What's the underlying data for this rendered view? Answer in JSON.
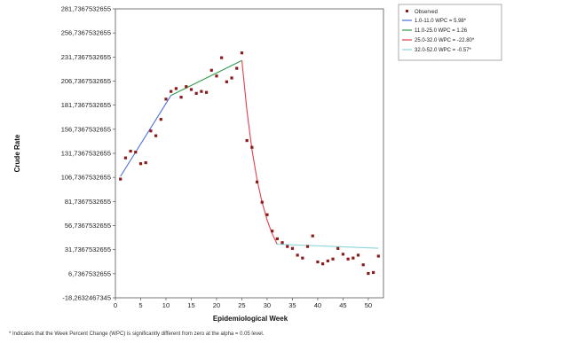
{
  "chart_data": {
    "type": "scatter",
    "xlabel": "Epidemiological Week",
    "ylabel": "Crude Rate",
    "xlim": [
      0,
      53
    ],
    "ylim": [
      -18.2632467345,
      281.7367532655
    ],
    "x_ticks": [
      0,
      5,
      10,
      15,
      20,
      25,
      30,
      35,
      40,
      45,
      50
    ],
    "y_ticks": [
      {
        "value": -18.2632467345,
        "label": "-18,2632467345"
      },
      {
        "value": 6.7367532655,
        "label": "6,7367532655"
      },
      {
        "value": 31.7367532655,
        "label": "31,7367532655"
      },
      {
        "value": 56.7367532655,
        "label": "56,7367532655"
      },
      {
        "value": 81.7367532655,
        "label": "81,7367532655"
      },
      {
        "value": 106.7367532655,
        "label": "106,7367532655"
      },
      {
        "value": 131.7367532655,
        "label": "131,7367532655"
      },
      {
        "value": 156.7367532655,
        "label": "156,7367532655"
      },
      {
        "value": 181.7367532655,
        "label": "181,7367532655"
      },
      {
        "value": 206.7367532655,
        "label": "206,7367532655"
      },
      {
        "value": 231.7367532655,
        "label": "231,7367532655"
      },
      {
        "value": 256.7367532655,
        "label": "256,7367532655"
      },
      {
        "value": 281.7367532655,
        "label": "281,7367532655"
      }
    ],
    "grid": false,
    "legend_position": "top-right",
    "observed": {
      "name": "Observed",
      "color": "#8b1a1a",
      "x": [
        1,
        2,
        3,
        4,
        5,
        6,
        7,
        8,
        9,
        10,
        11,
        12,
        13,
        14,
        15,
        16,
        17,
        18,
        19,
        20,
        21,
        22,
        23,
        24,
        25,
        26,
        27,
        28,
        29,
        30,
        31,
        32,
        33,
        34,
        35,
        36,
        37,
        38,
        39,
        40,
        41,
        42,
        43,
        44,
        45,
        46,
        47,
        48,
        49,
        50,
        51,
        52
      ],
      "y": [
        105,
        127,
        134,
        133,
        121,
        122,
        155,
        150,
        167,
        188,
        196,
        199,
        190,
        201,
        198,
        194,
        196,
        195,
        218,
        212,
        231,
        206,
        210,
        220,
        236,
        145,
        138,
        102,
        81,
        68,
        51,
        43,
        39,
        35,
        33,
        26,
        23,
        35,
        46,
        19,
        17,
        20,
        22,
        33,
        27,
        22,
        23,
        26,
        16,
        7,
        8,
        25
      ]
    },
    "segments": [
      {
        "label": "1.0-11.0 WPC  =    5.98*",
        "color": "#4a6ee0",
        "x": [
          1,
          11
        ],
        "y": [
          107.8,
          191.9
        ]
      },
      {
        "label": "11.0-25.0 WPC  =    1.26",
        "color": "#2f9e4a",
        "x": [
          11,
          25
        ],
        "y": [
          191.9,
          228.1
        ]
      },
      {
        "label": "25.0-32.0 WPC  = -22.80*",
        "color": "#e0404a",
        "x": [
          25,
          26,
          27,
          28,
          29,
          30,
          31,
          32
        ],
        "y": [
          228.1,
          176.1,
          135.9,
          104.9,
          81.0,
          62.5,
          48.3,
          37.3
        ]
      },
      {
        "label": "32.0-52.0 WPC  =  -0.57*",
        "color": "#8fd6d8",
        "x": [
          32,
          52
        ],
        "y": [
          37.3,
          33.2
        ]
      }
    ],
    "footnote": "* Indicates that the Week Percent Change (WPC) is significantly different from zero at the alpha = 0.05 level."
  }
}
